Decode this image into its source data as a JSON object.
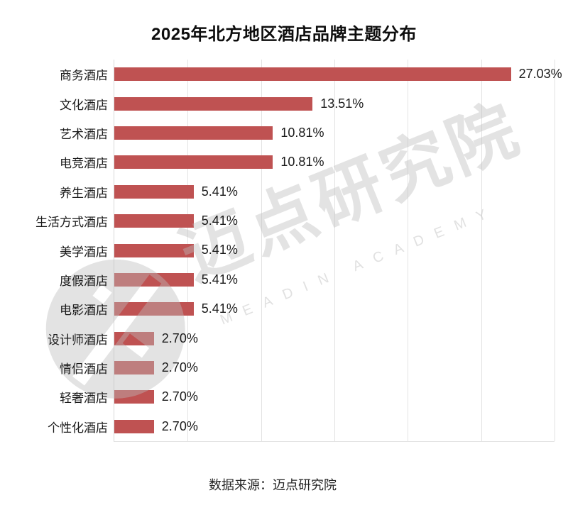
{
  "title": "2025年北方地区酒店品牌主题分布",
  "source": "数据来源：迈点研究院",
  "watermark": {
    "cn": "迈点研究院",
    "en": "MEADIN ACADEMY",
    "logo": "meadin-circle-logo"
  },
  "colors": {
    "bar": "#bf5252",
    "grid": "#e3e3e3",
    "axis": "#d8d8d8",
    "title_text": "#0d0d0d",
    "label_text": "#1a1a1a",
    "watermark_gray": "#bcbcbc"
  },
  "chart_data": {
    "type": "bar",
    "orientation": "horizontal",
    "title": "2025年北方地区酒店品牌主题分布",
    "categories": [
      "商务酒店",
      "文化酒店",
      "艺术酒店",
      "电竞酒店",
      "养生酒店",
      "生活方式酒店",
      "美学酒店",
      "度假酒店",
      "电影酒店",
      "设计师酒店",
      "情侣酒店",
      "轻奢酒店",
      "个性化酒店"
    ],
    "values": [
      27.03,
      13.51,
      10.81,
      10.81,
      5.41,
      5.41,
      5.41,
      5.41,
      5.41,
      2.7,
      2.7,
      2.7,
      2.7
    ],
    "value_labels": [
      "27.03%",
      "13.51%",
      "10.81%",
      "10.81%",
      "5.41%",
      "5.41%",
      "5.41%",
      "5.41%",
      "5.41%",
      "2.70%",
      "2.70%",
      "2.70%",
      "2.70%"
    ],
    "xlabel": "",
    "ylabel": "",
    "xlim": [
      0,
      30
    ],
    "gridline_step": 5,
    "grid": true,
    "legend": false,
    "data_labels": true
  }
}
